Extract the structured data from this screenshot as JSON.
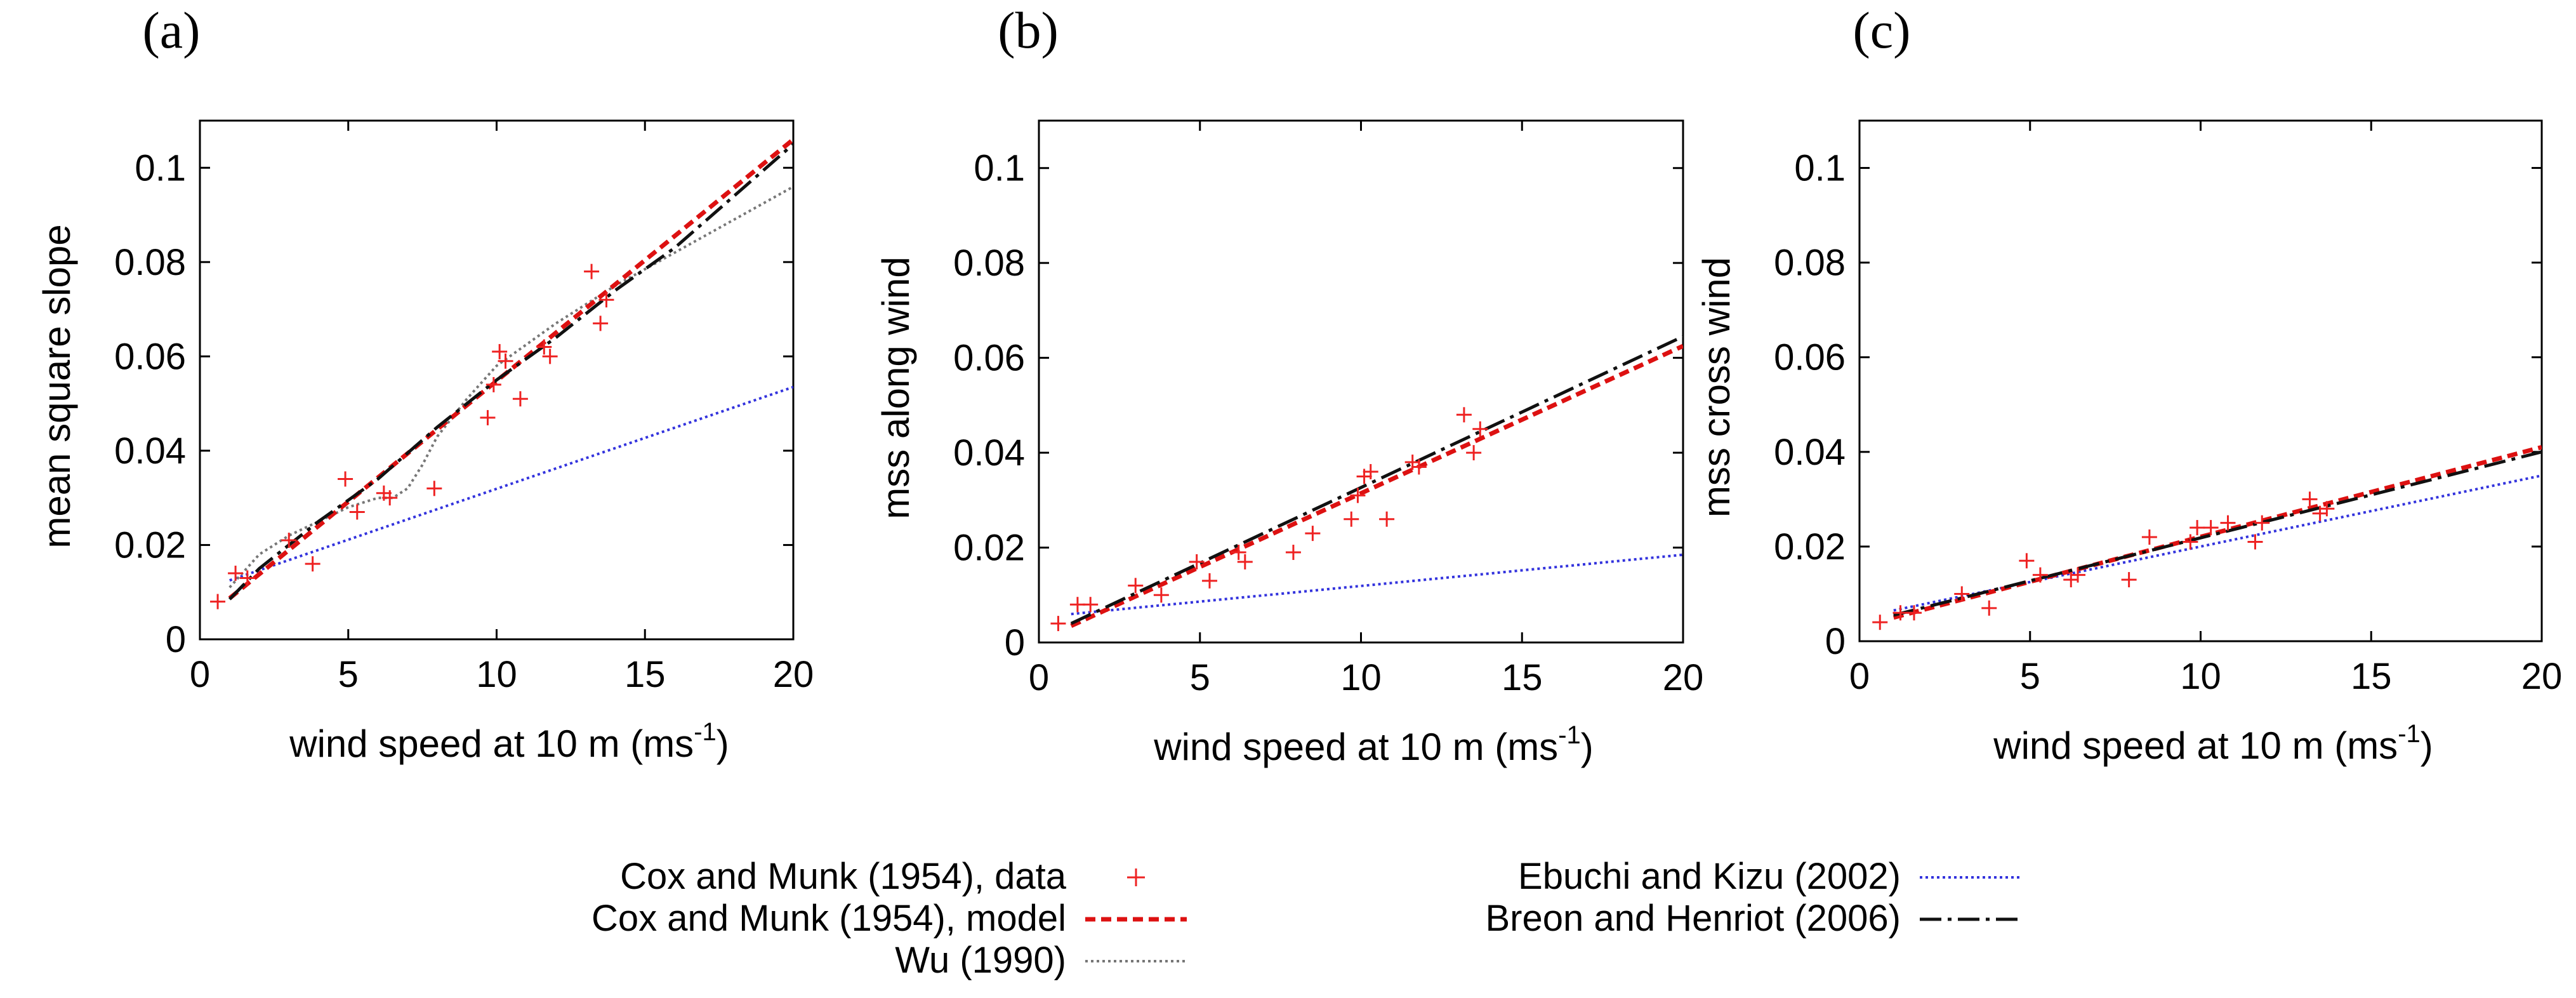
{
  "legend": [
    {
      "key": "data",
      "label": "Cox and Munk (1954), data",
      "style": "points",
      "color": "#ee2222"
    },
    {
      "key": "cm_model",
      "label": "Cox and Munk (1954), model",
      "style": "dashed",
      "color": "#dd1111"
    },
    {
      "key": "wu",
      "label": "Wu (1990)",
      "style": "dotted",
      "color": "#777777"
    },
    {
      "key": "ek",
      "label": "Ebuchi and Kizu (2002)",
      "style": "dotted",
      "color": "#3333dd"
    },
    {
      "key": "bh",
      "label": "Breon and Henriot (2006)",
      "style": "dashdot",
      "color": "#111111"
    }
  ],
  "chart_data": [
    {
      "type": "line",
      "panel": "(a)",
      "xlabel": "wind speed at 10 m (ms",
      "xlabel_sup": "-1",
      "xlabel_close": ")",
      "ylabel": "mean square slope",
      "xlim": [
        0,
        20
      ],
      "ylim": [
        0,
        0.11
      ],
      "xticks": [
        "0",
        "5",
        "10",
        "15",
        "20"
      ],
      "yticks": [
        "0",
        "0.02",
        "0.04",
        "0.06",
        "0.08",
        "0.1"
      ],
      "series": [
        {
          "key": "ek",
          "x": [
            1,
            20
          ],
          "y": [
            0.0125,
            0.0535
          ]
        },
        {
          "key": "wu",
          "x": [
            1,
            2,
            3,
            4,
            5,
            6,
            6.5,
            7,
            7.5,
            8,
            9,
            10,
            12,
            14,
            16,
            18,
            20
          ],
          "y": [
            0.011,
            0.018,
            0.022,
            0.025,
            0.028,
            0.03,
            0.03,
            0.032,
            0.037,
            0.043,
            0.051,
            0.058,
            0.067,
            0.075,
            0.082,
            0.089,
            0.096
          ]
        },
        {
          "key": "bh",
          "x": [
            1,
            2,
            4,
            6,
            8,
            10,
            12,
            14,
            16,
            18,
            20
          ],
          "y": [
            0.0085,
            0.015,
            0.025,
            0.034,
            0.045,
            0.055,
            0.064,
            0.074,
            0.083,
            0.094,
            0.105
          ]
        },
        {
          "key": "cm_model",
          "x": [
            1,
            20
          ],
          "y": [
            0.0087,
            0.106
          ]
        },
        {
          "key": "data",
          "x": [
            0.6,
            1.2,
            1.6,
            3.0,
            3.8,
            4.9,
            5.3,
            6.2,
            6.4,
            7.9,
            9.7,
            9.9,
            10.1,
            10.3,
            10.8,
            11.6,
            11.8,
            13.2,
            13.5,
            13.7
          ],
          "y": [
            0.008,
            0.014,
            0.013,
            0.021,
            0.016,
            0.034,
            0.027,
            0.031,
            0.03,
            0.032,
            0.047,
            0.054,
            0.061,
            0.059,
            0.051,
            0.062,
            0.06,
            0.078,
            0.067,
            0.072
          ]
        }
      ]
    },
    {
      "type": "line",
      "panel": "(b)",
      "xlabel": "wind speed at 10 m (ms",
      "xlabel_sup": "-1",
      "xlabel_close": ")",
      "ylabel": "mss along wind",
      "xlim": [
        0,
        20
      ],
      "ylim": [
        0,
        0.11
      ],
      "xticks": [
        "0",
        "5",
        "10",
        "15",
        "20"
      ],
      "yticks": [
        "0",
        "0.02",
        "0.04",
        "0.06",
        "0.08",
        "0.1"
      ],
      "series": [
        {
          "key": "ek",
          "x": [
            1,
            20
          ],
          "y": [
            0.006,
            0.0185
          ]
        },
        {
          "key": "cm_model",
          "x": [
            1,
            20
          ],
          "y": [
            0.0035,
            0.0625
          ]
        },
        {
          "key": "bh",
          "x": [
            1,
            20
          ],
          "y": [
            0.004,
            0.0645
          ]
        },
        {
          "key": "data",
          "x": [
            0.6,
            1.2,
            1.6,
            3.0,
            3.8,
            4.9,
            5.3,
            6.2,
            6.4,
            7.9,
            8.5,
            9.7,
            9.9,
            10.1,
            10.3,
            10.8,
            11.6,
            11.8,
            13.2,
            13.5,
            13.7
          ],
          "y": [
            0.004,
            0.008,
            0.008,
            0.012,
            0.01,
            0.017,
            0.013,
            0.019,
            0.017,
            0.019,
            0.023,
            0.026,
            0.031,
            0.035,
            0.036,
            0.026,
            0.038,
            0.037,
            0.048,
            0.04,
            0.045
          ]
        }
      ]
    },
    {
      "type": "line",
      "panel": "(c)",
      "xlabel": "wind speed at 10 m (ms",
      "xlabel_sup": "-1",
      "xlabel_close": ")",
      "ylabel": "mss cross wind",
      "xlim": [
        0,
        20
      ],
      "ylim": [
        0,
        0.11
      ],
      "xticks": [
        "0",
        "5",
        "10",
        "15",
        "20"
      ],
      "yticks": [
        "0",
        "0.02",
        "0.04",
        "0.06",
        "0.08",
        "0.1"
      ],
      "series": [
        {
          "key": "ek",
          "x": [
            1,
            20
          ],
          "y": [
            0.0065,
            0.035
          ]
        },
        {
          "key": "cm_model",
          "x": [
            1,
            20
          ],
          "y": [
            0.005,
            0.041
          ]
        },
        {
          "key": "bh",
          "x": [
            1,
            20
          ],
          "y": [
            0.0055,
            0.04
          ]
        },
        {
          "key": "data",
          "x": [
            0.6,
            1.2,
            1.6,
            3.0,
            3.8,
            4.9,
            5.3,
            6.2,
            6.4,
            7.9,
            8.5,
            9.7,
            9.9,
            10.3,
            10.8,
            11.6,
            11.8,
            13.2,
            13.5,
            13.7
          ],
          "y": [
            0.004,
            0.006,
            0.006,
            0.01,
            0.007,
            0.017,
            0.014,
            0.013,
            0.014,
            0.013,
            0.022,
            0.021,
            0.024,
            0.024,
            0.025,
            0.021,
            0.025,
            0.03,
            0.027,
            0.028
          ]
        }
      ]
    }
  ]
}
